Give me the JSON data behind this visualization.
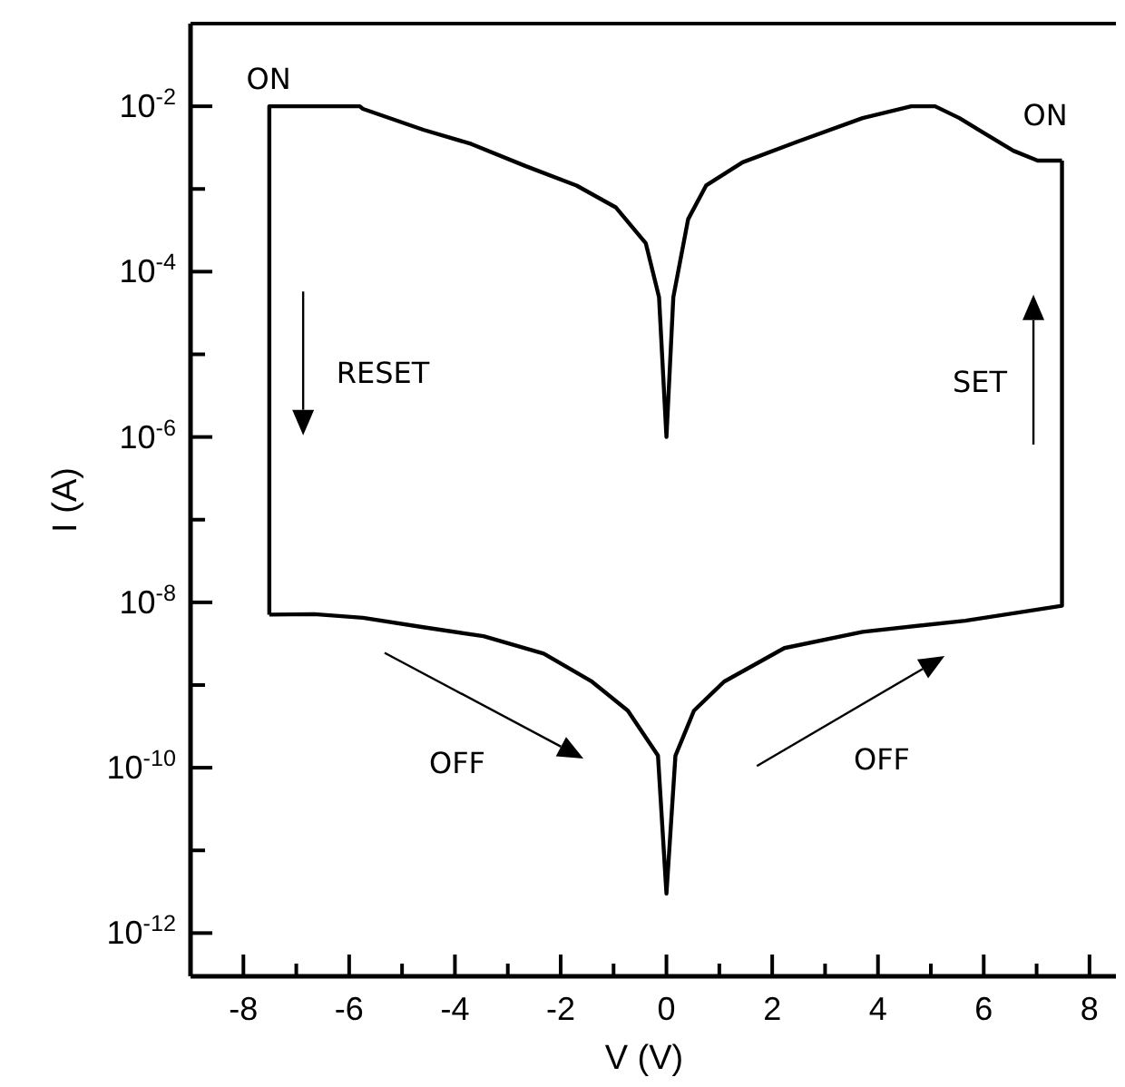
{
  "chart_data": {
    "type": "line",
    "xlabel": "V (V)",
    "ylabel": "I (A)",
    "log": "y",
    "grid": false,
    "marker": "none",
    "line_style": "solid",
    "xlim": [
      -9,
      8.5
    ],
    "ylim": [
      3e-13,
      0.1
    ],
    "xticks": [
      -8,
      {
        "value": -7,
        "label": null
      },
      -6,
      {
        "value": -5,
        "label": null
      },
      -4,
      {
        "value": -3,
        "label": null
      },
      -2,
      {
        "value": -1,
        "label": null
      },
      0,
      {
        "value": 1,
        "label": null
      },
      2,
      {
        "value": 3,
        "label": null
      },
      4,
      {
        "value": 5,
        "label": null
      },
      6,
      {
        "value": 7,
        "label": null
      },
      8
    ],
    "yticks": [
      {
        "value": 1e-12,
        "label": "10$^{-12}$"
      },
      {
        "value": 1e-11,
        "label": null
      },
      {
        "value": 1e-10,
        "label": "10$^{-10}$"
      },
      {
        "value": 1e-09,
        "label": null
      },
      {
        "value": 1e-08,
        "label": "10$^{-8}$"
      },
      {
        "value": 1e-07,
        "label": null
      },
      {
        "value": 1e-06,
        "label": "10$^{-6}$"
      },
      {
        "value": 1e-05,
        "label": null
      },
      {
        "value": 0.0001,
        "label": "10$^{-4}$"
      },
      {
        "value": 0.001,
        "label": null
      },
      {
        "value": 0.01,
        "label": "10$^{-2}$"
      }
    ],
    "series": [
      {
        "color": "#000000",
        "x": [
          -7.51,
          -6.66,
          -5.74,
          -4.6,
          -3.46,
          -2.32,
          -1.41,
          -0.73,
          -0.16,
          0,
          0.17,
          0.52,
          1.09,
          2.23,
          3.71,
          5.65,
          7.48,
          7.48
        ],
        "values": [
          7.1e-09,
          7.2e-09,
          6.5e-09,
          5e-09,
          3.9e-09,
          2.4e-09,
          1.1e-09,
          4.9e-10,
          1.4e-10,
          3e-12,
          1.4e-10,
          4.9e-10,
          1.1e-09,
          2.8e-09,
          4.4e-09,
          6e-09,
          9.1e-09,
          0.0022
        ]
      },
      {
        "color": "#000000",
        "x": [
          -7.51,
          -7.51,
          -5.8,
          -5.74,
          -4.6,
          -3.69,
          -2.67,
          -1.7,
          -0.96,
          -0.39,
          -0.14,
          0,
          0.13,
          0.41,
          0.75,
          1.44,
          2.46,
          3.71,
          4.63,
          5.08,
          5.54,
          5.99,
          6.56,
          7.02,
          7.48
        ],
        "values": [
          7.1e-09,
          0.01,
          0.01,
          0.0093,
          0.0052,
          0.0035,
          0.0019,
          0.0011,
          0.0006,
          0.00022,
          4.9e-05,
          1e-06,
          4.9e-05,
          0.00043,
          0.0011,
          0.0021,
          0.0037,
          0.0072,
          0.01,
          0.01,
          0.0072,
          0.0048,
          0.0029,
          0.0022,
          0.0022
        ]
      }
    ],
    "annotations": [
      "ON",
      "ON",
      "RESET",
      "SET",
      "OFF",
      "OFF"
    ]
  }
}
